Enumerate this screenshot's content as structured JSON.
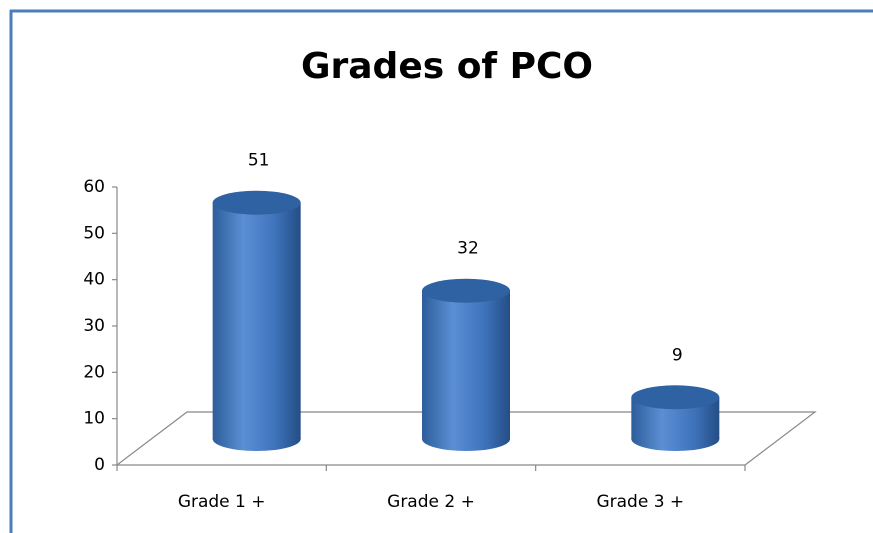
{
  "chart_data": {
    "type": "bar3d",
    "title": "Grades of PCO",
    "categories": [
      "Grade 1 +",
      "Grade 2 +",
      "Grade 3 +"
    ],
    "values": [
      51,
      32,
      9
    ],
    "color": "#4f81bd",
    "ylim": [
      0,
      60
    ],
    "yticks": [
      0,
      10,
      20,
      30,
      40,
      50,
      60
    ],
    "grid": false
  }
}
